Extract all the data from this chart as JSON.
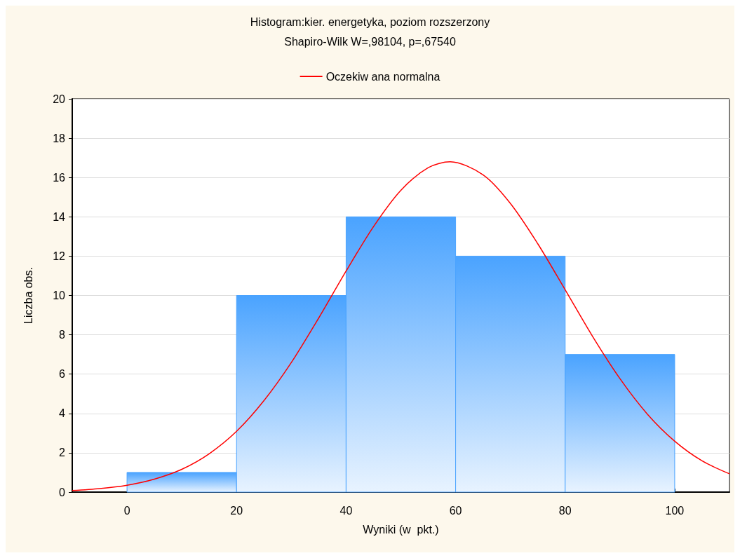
{
  "chart_data": {
    "type": "histogram",
    "title": "Histogram:kier. energetyka, poziom rozszerzony",
    "subtitle": "Shapiro-Wilk W=,98104, p=,67540",
    "xlabel": "Wyniki (w  pkt.)",
    "ylabel": "Liczba obs.",
    "series": [
      {
        "color": "#4aa3ff",
        "bins": [
          0,
          20,
          40,
          60,
          80,
          100
        ],
        "values": [
          1,
          10,
          14,
          12,
          7
        ]
      },
      {
        "type": "line",
        "name": "Oczekiw ana normalna",
        "color": "#ff0000",
        "x": [
          -10,
          -5,
          0,
          5,
          10,
          15,
          20,
          25,
          30,
          35,
          40,
          45,
          50,
          55,
          59,
          65,
          70,
          75,
          80,
          85,
          90,
          95,
          100,
          105,
          110
        ],
        "values": [
          0.08,
          0.18,
          0.35,
          0.66,
          1.16,
          1.95,
          3.09,
          4.65,
          6.59,
          8.85,
          11.24,
          13.5,
          15.35,
          16.5,
          16.8,
          16.14,
          14.68,
          12.63,
          10.29,
          7.92,
          5.77,
          3.97,
          2.59,
          1.59,
          0.93
        ]
      }
    ],
    "xlim": [
      -10,
      110
    ],
    "xticks": [
      0,
      20,
      40,
      60,
      80,
      100
    ],
    "ylim": [
      0,
      20
    ],
    "yticks": [
      0,
      2,
      4,
      6,
      8,
      10,
      12,
      14,
      16,
      18,
      20
    ],
    "grid": "y",
    "legend": "top",
    "marker": "none",
    "line_style": "solid"
  }
}
